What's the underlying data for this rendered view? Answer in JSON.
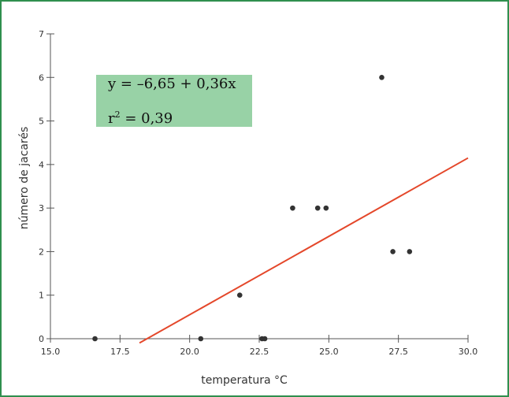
{
  "chart_data": {
    "type": "scatter",
    "title": "",
    "xlabel": "temperatura °C",
    "ylabel": "número de jacarés",
    "xlim": [
      15.0,
      30.0
    ],
    "ylim": [
      0,
      7
    ],
    "x_ticks": [
      "15.0",
      "17.5",
      "20.0",
      "22.5",
      "25.0",
      "27.5",
      "30.0"
    ],
    "y_ticks": [
      "0",
      "1",
      "2",
      "3",
      "4",
      "5",
      "6",
      "7"
    ],
    "grid": false,
    "points": [
      {
        "x": 16.6,
        "y": 0
      },
      {
        "x": 20.4,
        "y": 0
      },
      {
        "x": 22.6,
        "y": 0
      },
      {
        "x": 22.7,
        "y": 0
      },
      {
        "x": 21.8,
        "y": 1
      },
      {
        "x": 23.7,
        "y": 3
      },
      {
        "x": 24.6,
        "y": 3
      },
      {
        "x": 24.9,
        "y": 3
      },
      {
        "x": 26.9,
        "y": 6
      },
      {
        "x": 27.3,
        "y": 2
      },
      {
        "x": 27.9,
        "y": 2
      }
    ],
    "regression": {
      "intercept": -6.65,
      "slope": 0.36,
      "x_range": [
        18.2,
        30.0
      ]
    },
    "annotation": {
      "equation": "y = –6,65 + 0,36x",
      "r2_prefix": "r",
      "r2_sup": "2",
      "r2_value": " = 0,39"
    },
    "colors": {
      "frame": "#2f8f4e",
      "annotation_box": "#98d2a6",
      "regression_line": "#e4472a",
      "points": "#333333",
      "axes": "#555555"
    }
  }
}
